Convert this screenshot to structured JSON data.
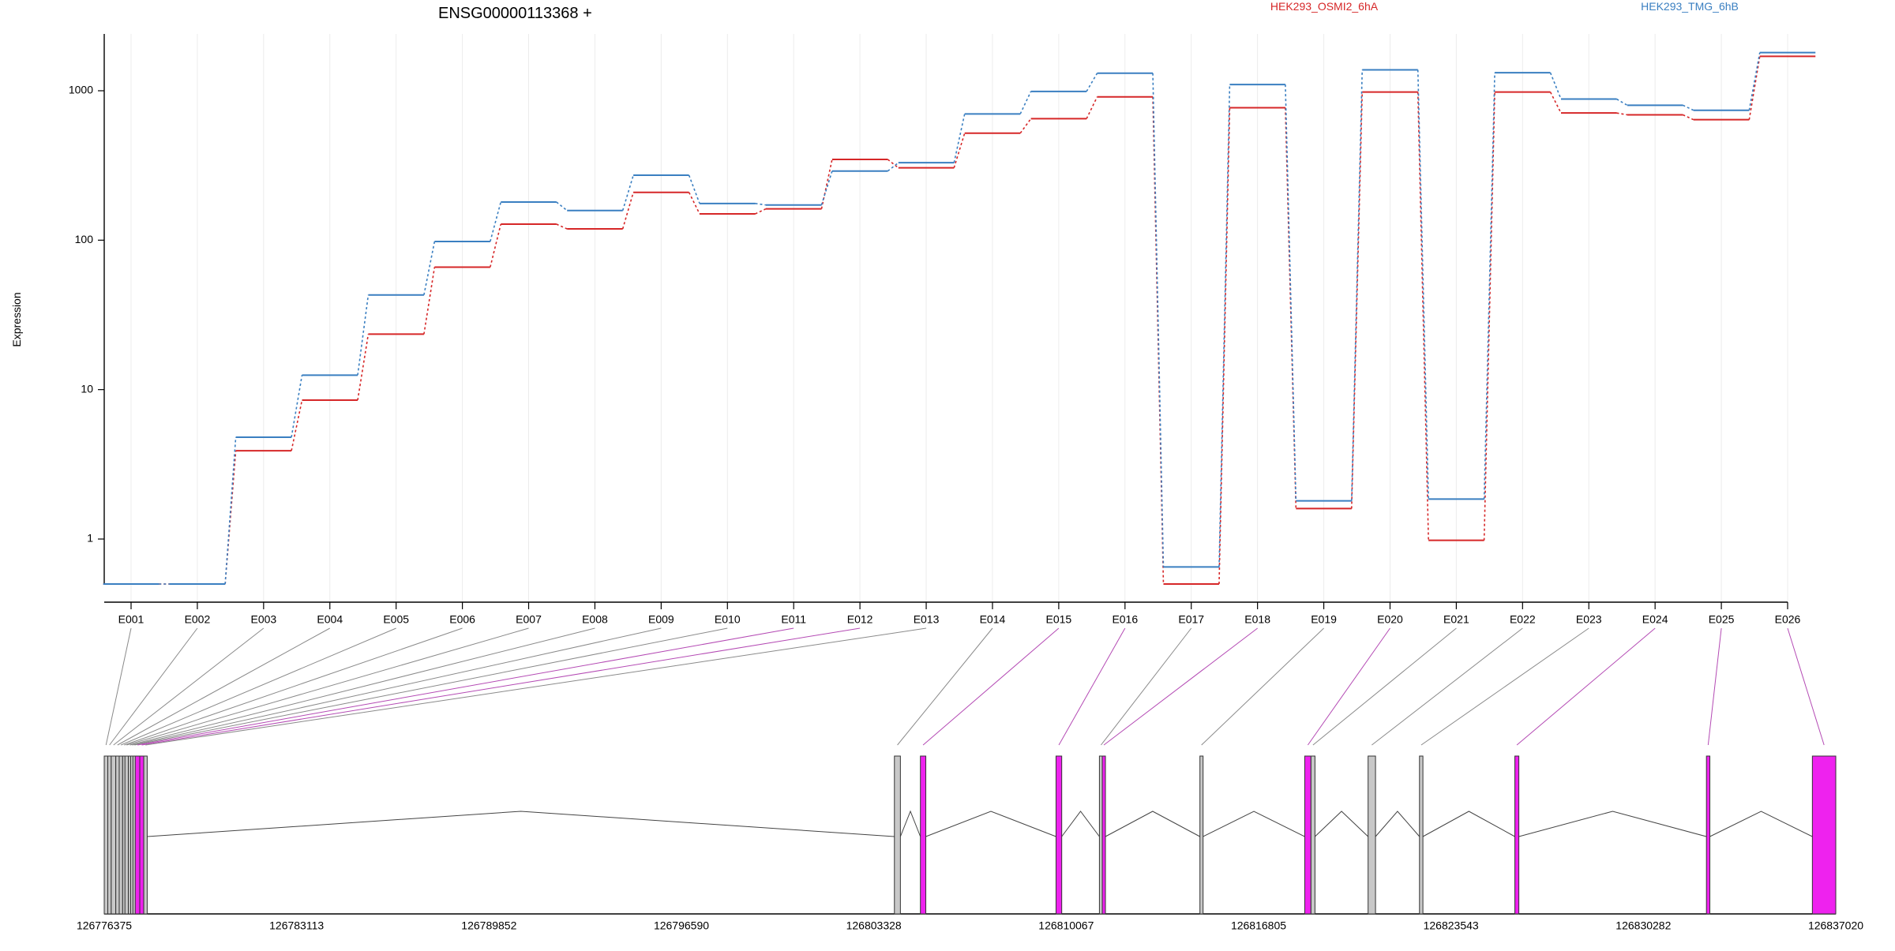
{
  "chart_data": {
    "type": "line",
    "title": "ENSG00000113368 +",
    "ylabel": "Expression",
    "y_scale": "log",
    "ylim": [
      0.5,
      2400
    ],
    "y_ticks": [
      1,
      10,
      100,
      1000
    ],
    "y_tick_labels": [
      "1",
      "10",
      "100",
      "1000"
    ],
    "grid": "vertical only",
    "legend_placement": "top",
    "categories": [
      "E001",
      "E002",
      "E003",
      "E004",
      "E005",
      "E006",
      "E007",
      "E008",
      "E009",
      "E010",
      "E011",
      "E012",
      "E013",
      "E014",
      "E015",
      "E016",
      "E017",
      "E018",
      "E019",
      "E020",
      "E021",
      "E022",
      "E023",
      "E024",
      "E025",
      "E026"
    ],
    "series": [
      {
        "name": "HEK293_OSMI2_6hA",
        "color": "#d62728",
        "values": [
          0.5,
          0.5,
          3.9,
          8.5,
          23.5,
          66,
          128,
          119,
          209,
          150,
          162,
          347,
          305,
          520,
          650,
          910,
          0.5,
          770,
          1.6,
          980,
          0.98,
          980,
          710,
          690,
          640,
          1700
        ]
      },
      {
        "name": "HEK293_TMG_6hB",
        "color": "#3a7fc1",
        "values": [
          0.5,
          0.5,
          4.8,
          12.5,
          43,
          98,
          180,
          158,
          272,
          176,
          172,
          290,
          330,
          700,
          990,
          1310,
          0.65,
          1100,
          1.8,
          1380,
          1.85,
          1320,
          880,
          800,
          740,
          1800
        ]
      }
    ],
    "gene_model": {
      "coordinate_labels": [
        "126776375",
        "126783113",
        "126789852",
        "126796590",
        "126803328",
        "126810067",
        "126816805",
        "126823543",
        "126830282",
        "126837020"
      ],
      "exon_colors": {
        "constitutive": "#c8c8c8",
        "highlighted": "#ee22ee"
      },
      "exons": [
        {
          "id": "E001",
          "start": 126776375,
          "end": 126776500,
          "highlight": false
        },
        {
          "id": "E002",
          "start": 126776500,
          "end": 126776620,
          "highlight": false
        },
        {
          "id": "E003",
          "start": 126776620,
          "end": 126776780,
          "highlight": false
        },
        {
          "id": "E004",
          "start": 126776780,
          "end": 126776900,
          "highlight": false
        },
        {
          "id": "E005",
          "start": 126776900,
          "end": 126777020,
          "highlight": false
        },
        {
          "id": "E006",
          "start": 126777020,
          "end": 126777100,
          "highlight": false
        },
        {
          "id": "E007",
          "start": 126777100,
          "end": 126777220,
          "highlight": false
        },
        {
          "id": "E008",
          "start": 126777220,
          "end": 126777300,
          "highlight": false
        },
        {
          "id": "E009",
          "start": 126777300,
          "end": 126777380,
          "highlight": false
        },
        {
          "id": "E010",
          "start": 126777380,
          "end": 126777460,
          "highlight": false
        },
        {
          "id": "E011",
          "start": 126777460,
          "end": 126777620,
          "highlight": true
        },
        {
          "id": "E012",
          "start": 126777620,
          "end": 126777760,
          "highlight": true
        },
        {
          "id": "E013",
          "start": 126777760,
          "end": 126777880,
          "highlight": false
        },
        {
          "id": "E014",
          "start": 126804050,
          "end": 126804260,
          "highlight": false
        },
        {
          "id": "E015",
          "start": 126804960,
          "end": 126805150,
          "highlight": true
        },
        {
          "id": "E016",
          "start": 126809710,
          "end": 126809910,
          "highlight": true
        },
        {
          "id": "E017",
          "start": 126811230,
          "end": 126811330,
          "highlight": false
        },
        {
          "id": "E018",
          "start": 126811330,
          "end": 126811440,
          "highlight": true
        },
        {
          "id": "E019",
          "start": 126814750,
          "end": 126814850,
          "highlight": false
        },
        {
          "id": "E020",
          "start": 126818420,
          "end": 126818640,
          "highlight": true
        },
        {
          "id": "E021",
          "start": 126818640,
          "end": 126818780,
          "highlight": false
        },
        {
          "id": "E022",
          "start": 126820640,
          "end": 126820900,
          "highlight": false
        },
        {
          "id": "E023",
          "start": 126822440,
          "end": 126822560,
          "highlight": false
        },
        {
          "id": "E024",
          "start": 126825780,
          "end": 126825920,
          "highlight": true
        },
        {
          "id": "E025",
          "start": 126832490,
          "end": 126832610,
          "highlight": true
        },
        {
          "id": "E026",
          "start": 126836200,
          "end": 126837020,
          "highlight": true
        }
      ]
    }
  }
}
